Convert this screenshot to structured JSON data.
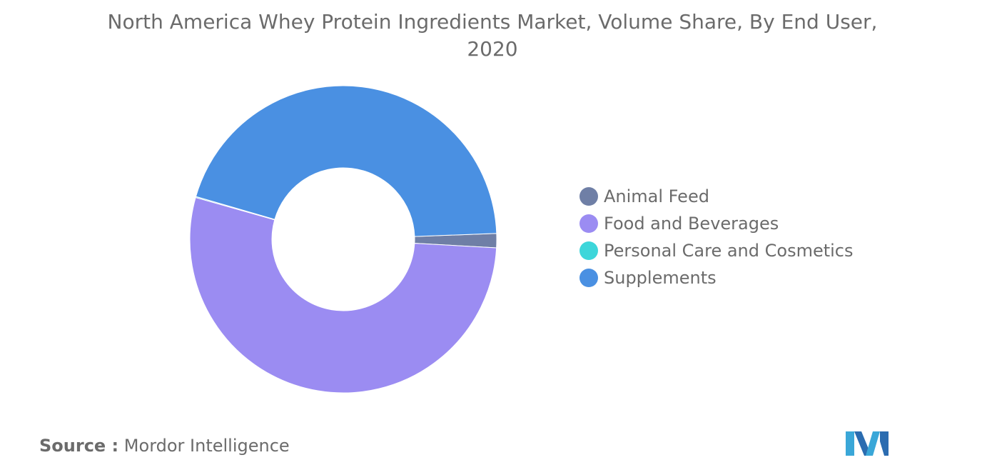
{
  "chart_data": {
    "type": "pie",
    "title": "North America Whey Protein Ingredients Market, Volume Share, By End User, 2020",
    "donut": true,
    "legend_position": "right",
    "categories": [
      "Animal Feed",
      "Food and Beverages",
      "Personal Care and Cosmetics",
      "Supplements"
    ],
    "values": [
      1.5,
      53.5,
      0.1,
      44.9
    ],
    "colors": [
      "#6f7fa6",
      "#9b8cf2",
      "#3dd6da",
      "#4a90e2"
    ]
  },
  "source": {
    "prefix": "Source :",
    "name": "Mordor Intelligence"
  }
}
